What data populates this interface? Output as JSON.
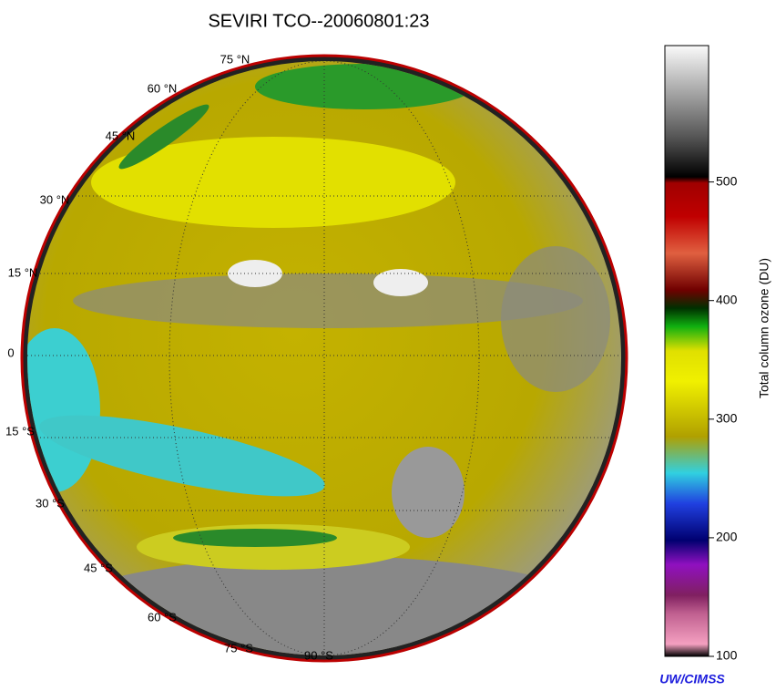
{
  "chart_data": {
    "type": "map",
    "title": "SEVIRI TCO--20060801:23",
    "latitude_labels": [
      "75 °N",
      "60 °N",
      "45 °N",
      "30 °N",
      "15 °N",
      "0",
      "15 °S",
      "30 °S",
      "45 °S",
      "60 °S",
      "75 °S",
      "90 °S"
    ],
    "colorbar": {
      "label": "Total column ozone (DU)",
      "clim": [
        100,
        615
      ],
      "ticks": [
        100,
        200,
        300,
        400,
        500
      ]
    },
    "credit": "UW/CIMSS"
  }
}
